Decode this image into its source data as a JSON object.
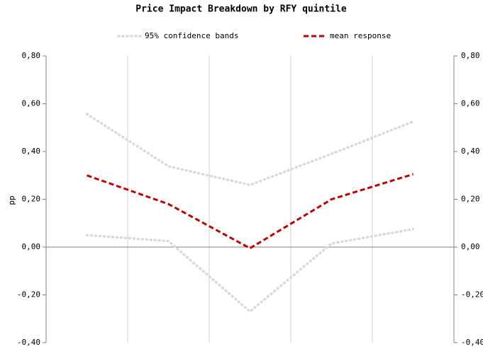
{
  "chart_data": {
    "type": "line",
    "title": "Price Impact Breakdown by RFY quintile",
    "y_label": "pp",
    "categories": [
      null,
      null,
      null,
      null,
      null
    ],
    "series": [
      {
        "name": "95% confidence bands",
        "color": "#d9d9d9",
        "style": "dotted",
        "values": [
          0.557,
          0.338,
          0.26,
          0.39,
          0.525
        ],
        "lower": [
          0.05,
          0.025,
          -0.27,
          0.015,
          0.075
        ]
      },
      {
        "name": "mean response",
        "color": "#c00000",
        "style": "dashed",
        "values": [
          0.3,
          0.18,
          -0.005,
          0.2,
          0.305
        ]
      }
    ],
    "ylim": [
      -0.4,
      0.8
    ],
    "yticks": [
      {
        "value": -0.4,
        "label": "-0,40"
      },
      {
        "value": -0.2,
        "label": "-0,20"
      },
      {
        "value": 0,
        "label": "0,00"
      },
      {
        "value": 0.2,
        "label": "0,20"
      },
      {
        "value": 0.4,
        "label": "0,40"
      },
      {
        "value": 0.6,
        "label": "0,60"
      },
      {
        "value": 0.8,
        "label": "0,80"
      }
    ],
    "right_axis_mirror": true,
    "grid": "vertical"
  }
}
